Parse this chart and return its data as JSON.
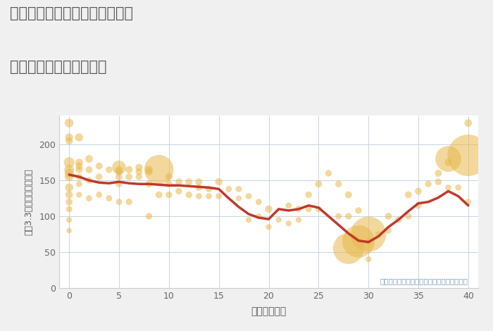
{
  "title_line1": "神奈川県横浜市都筑区川和町の",
  "title_line2": "築年数別中古戸建て価格",
  "xlabel": "築年数（年）",
  "ylabel": "坪（3.3㎡）単価（万円）",
  "annotation": "円の大きさは、取引のあった物件面積を示す",
  "background_color": "#f0f0f0",
  "plot_bg_color": "#ffffff",
  "bubble_color": "#e8b84b",
  "bubble_alpha": 0.55,
  "line_color": "#c0392b",
  "line_width": 2.5,
  "grid_color": "#c8d4e0",
  "title_color": "#555555",
  "annotation_color": "#7a9abf",
  "xlim": [
    -1,
    41
  ],
  "ylim": [
    0,
    240
  ],
  "yticks": [
    0,
    50,
    100,
    150,
    200
  ],
  "xticks": [
    0,
    5,
    10,
    15,
    20,
    25,
    30,
    35,
    40
  ],
  "scatter_x": [
    0,
    0,
    0,
    0,
    0,
    0,
    0,
    0,
    0,
    0,
    0,
    0,
    0,
    1,
    1,
    1,
    1,
    1,
    1,
    1,
    2,
    2,
    2,
    2,
    3,
    3,
    3,
    4,
    4,
    5,
    5,
    5,
    5,
    5,
    5,
    6,
    6,
    6,
    7,
    7,
    7,
    8,
    8,
    8,
    8,
    9,
    9,
    10,
    10,
    10,
    11,
    11,
    12,
    12,
    13,
    13,
    13,
    14,
    14,
    15,
    15,
    16,
    17,
    17,
    18,
    18,
    19,
    19,
    20,
    20,
    21,
    22,
    22,
    23,
    23,
    24,
    24,
    25,
    25,
    26,
    27,
    27,
    28,
    28,
    28,
    29,
    29,
    30,
    30,
    30,
    31,
    32,
    32,
    33,
    34,
    34,
    35,
    35,
    36,
    37,
    37,
    38,
    38,
    38,
    39,
    40,
    40,
    40
  ],
  "scatter_y": [
    230,
    210,
    205,
    175,
    165,
    160,
    155,
    140,
    130,
    120,
    110,
    95,
    80,
    210,
    175,
    170,
    165,
    155,
    145,
    130,
    180,
    165,
    150,
    125,
    170,
    155,
    130,
    165,
    125,
    168,
    165,
    162,
    155,
    145,
    120,
    165,
    155,
    120,
    168,
    162,
    155,
    165,
    162,
    145,
    100,
    165,
    130,
    155,
    145,
    130,
    148,
    135,
    148,
    130,
    148,
    140,
    128,
    138,
    128,
    148,
    128,
    138,
    138,
    125,
    128,
    95,
    120,
    100,
    110,
    85,
    95,
    115,
    90,
    110,
    95,
    130,
    110,
    145,
    110,
    160,
    145,
    100,
    130,
    100,
    55,
    108,
    65,
    75,
    65,
    40,
    75,
    100,
    80,
    95,
    130,
    100,
    135,
    115,
    145,
    160,
    148,
    180,
    175,
    140,
    140,
    230,
    185,
    120
  ],
  "scatter_size": [
    80,
    65,
    55,
    120,
    100,
    90,
    80,
    70,
    60,
    50,
    40,
    35,
    30,
    70,
    60,
    55,
    50,
    45,
    40,
    35,
    60,
    50,
    45,
    40,
    50,
    45,
    40,
    45,
    40,
    200,
    60,
    55,
    50,
    45,
    40,
    55,
    50,
    45,
    55,
    50,
    45,
    60,
    55,
    50,
    45,
    900,
    50,
    55,
    50,
    45,
    50,
    45,
    50,
    45,
    50,
    45,
    40,
    45,
    40,
    55,
    40,
    40,
    40,
    35,
    40,
    35,
    40,
    35,
    55,
    35,
    35,
    40,
    35,
    45,
    35,
    45,
    40,
    50,
    40,
    45,
    45,
    40,
    50,
    45,
    1000,
    45,
    1100,
    1300,
    50,
    35,
    40,
    50,
    40,
    40,
    50,
    40,
    50,
    45,
    45,
    50,
    45,
    700,
    55,
    40,
    40,
    60,
    1800,
    40
  ],
  "trend_x": [
    0,
    1,
    2,
    3,
    4,
    5,
    6,
    7,
    8,
    9,
    10,
    11,
    12,
    13,
    14,
    15,
    16,
    17,
    18,
    19,
    20,
    21,
    22,
    23,
    24,
    25,
    26,
    27,
    28,
    29,
    30,
    31,
    32,
    33,
    34,
    35,
    36,
    37,
    38,
    39,
    40
  ],
  "trend_y": [
    158,
    155,
    150,
    147,
    146,
    148,
    146,
    145,
    145,
    144,
    143,
    143,
    142,
    141,
    140,
    138,
    125,
    113,
    103,
    98,
    96,
    110,
    108,
    110,
    115,
    112,
    100,
    88,
    76,
    66,
    64,
    72,
    85,
    95,
    107,
    118,
    120,
    126,
    135,
    128,
    115
  ]
}
